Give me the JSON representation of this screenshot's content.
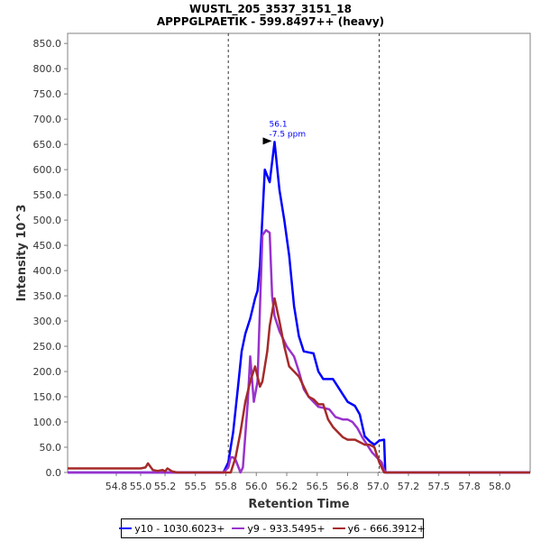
{
  "title": "WUSTL_205_3537_3151_18",
  "subtitle": "APPPGLPAETIK - 599.8497++ (heavy)",
  "chart_data": {
    "type": "line",
    "title": "WUSTL_205_3537_3151_18",
    "subtitle": "APPPGLPAETIK - 599.8497++ (heavy)",
    "xlabel": "Retention Time",
    "ylabel": "Intensity 10^3",
    "xlim": [
      54.4,
      58.2
    ],
    "ylim": [
      0,
      870
    ],
    "xticks": [
      "54.8",
      "55.0",
      "55.2",
      "55.5",
      "55.8",
      "56.0",
      "56.2",
      "56.5",
      "56.8",
      "57.0",
      "57.2",
      "57.5",
      "57.8",
      "58.0"
    ],
    "xtick_values": [
      54.8,
      55.0,
      55.2,
      55.45,
      55.7,
      55.95,
      56.2,
      56.45,
      56.7,
      56.95,
      57.2,
      57.45,
      57.7,
      57.95
    ],
    "yticks": [
      "0.0",
      "50.0",
      "100.0",
      "150.0",
      "200.0",
      "250.0",
      "300.0",
      "350.0",
      "400.0",
      "450.0",
      "500.0",
      "550.0",
      "600.0",
      "650.0",
      "700.0",
      "750.0",
      "800.0",
      "850.0"
    ],
    "ytick_values": [
      0,
      50,
      100,
      150,
      200,
      250,
      300,
      350,
      400,
      450,
      500,
      550,
      600,
      650,
      700,
      750,
      800,
      850
    ],
    "vlines": [
      55.72,
      56.96
    ],
    "annotation": {
      "line1": "56.1",
      "line2": "-7.5 ppm",
      "x": 56.1,
      "y": 655
    },
    "legend_position": "bottom",
    "series": [
      {
        "name": "y10 - 1030.6023+",
        "color": "#0000ff",
        "x": [
          54.4,
          55.68,
          55.72,
          55.76,
          55.8,
          55.83,
          55.86,
          55.9,
          55.94,
          55.96,
          55.98,
          56.02,
          56.06,
          56.1,
          56.14,
          56.18,
          56.22,
          56.26,
          56.3,
          56.34,
          56.38,
          56.42,
          56.46,
          56.5,
          56.58,
          56.62,
          56.7,
          56.76,
          56.8,
          56.84,
          56.88,
          56.92,
          56.96,
          57.0,
          57.01,
          57.02,
          58.2
        ],
        "values": [
          0,
          0,
          20,
          80,
          170,
          240,
          275,
          305,
          345,
          360,
          410,
          600,
          575,
          655,
          560,
          500,
          430,
          330,
          270,
          240,
          238,
          236,
          200,
          185,
          185,
          170,
          140,
          132,
          115,
          72,
          62,
          55,
          63,
          65,
          0,
          0,
          0
        ]
      },
      {
        "name": "y9 - 933.5495+",
        "color": "#9932cc",
        "x": [
          54.4,
          55.68,
          55.72,
          55.74,
          55.76,
          55.78,
          55.82,
          55.84,
          55.88,
          55.9,
          55.93,
          55.96,
          56.0,
          56.03,
          56.06,
          56.08,
          56.1,
          56.14,
          56.2,
          56.26,
          56.3,
          56.34,
          56.38,
          56.42,
          56.46,
          56.5,
          56.55,
          56.6,
          56.66,
          56.7,
          56.74,
          56.78,
          56.82,
          56.86,
          56.9,
          56.94,
          56.98,
          57.0,
          57.02,
          58.2
        ],
        "values": [
          0,
          0,
          10,
          30,
          30,
          25,
          0,
          10,
          140,
          230,
          140,
          180,
          470,
          480,
          475,
          350,
          310,
          280,
          250,
          230,
          200,
          165,
          150,
          140,
          130,
          128,
          125,
          110,
          105,
          105,
          100,
          88,
          70,
          55,
          40,
          30,
          20,
          5,
          0,
          0
        ]
      },
      {
        "name": "y6 - 666.3912+",
        "color": "#a52a2a",
        "x": [
          54.4,
          54.6,
          54.8,
          55.0,
          55.04,
          55.06,
          55.1,
          55.14,
          55.18,
          55.2,
          55.22,
          55.26,
          55.3,
          55.74,
          55.78,
          55.82,
          55.86,
          55.9,
          55.94,
          55.98,
          56.0,
          56.04,
          56.06,
          56.1,
          56.14,
          56.18,
          56.22,
          56.26,
          56.3,
          56.34,
          56.38,
          56.42,
          56.46,
          56.5,
          56.54,
          56.58,
          56.62,
          56.66,
          56.7,
          56.76,
          56.8,
          56.84,
          56.88,
          56.92,
          56.96,
          57.0,
          57.02,
          58.2
        ],
        "values": [
          8,
          8,
          8,
          8,
          10,
          18,
          5,
          3,
          5,
          2,
          8,
          2,
          0,
          0,
          30,
          80,
          140,
          180,
          210,
          170,
          180,
          240,
          290,
          345,
          300,
          250,
          210,
          200,
          190,
          170,
          150,
          145,
          135,
          135,
          105,
          90,
          80,
          70,
          65,
          65,
          60,
          55,
          55,
          50,
          20,
          0,
          0,
          0
        ]
      }
    ]
  }
}
